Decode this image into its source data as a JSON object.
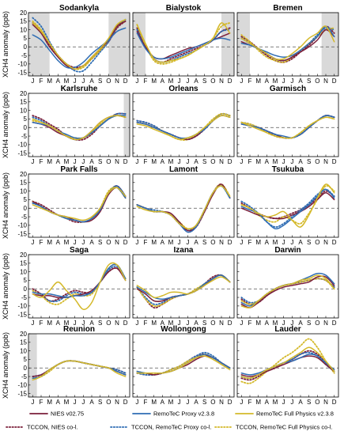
{
  "chart_data": {
    "type": "line",
    "ylabel": "XCH4 anomaly (ppb)",
    "ylim": [
      -17,
      20
    ],
    "yticks": [
      -15,
      -10,
      -5,
      0,
      5,
      10,
      15,
      20
    ],
    "months": [
      "J",
      "F",
      "M",
      "A",
      "M",
      "J",
      "J",
      "A",
      "S",
      "O",
      "N",
      "D"
    ],
    "legend_labels": {
      "nies": "NIES v02.75",
      "proxy": "RemoTeC Proxy v2.3.8",
      "full": "RemoTeC Full Physics v2.3.8",
      "tccon_nies": "TCCON, NIES co-l.",
      "tccon_proxy": "TCCON, RemoTeC Proxy co-l.",
      "tccon_full": "TCCON, RemoTeC Full Physics co-l."
    },
    "colors": {
      "nies": "#7b1f3a",
      "proxy": "#2f6db4",
      "full": "#d4b92a",
      "zero_line": "#555555",
      "shade": "#d9d9d9"
    },
    "panels": [
      {
        "title": "Sodankyla",
        "shade": [
          [
            0,
            2.5
          ],
          [
            9.5,
            12
          ]
        ],
        "nies": [
          13,
          8,
          0,
          -6,
          -11,
          -13,
          -11,
          -6,
          -1,
          4,
          12,
          15
        ],
        "proxy": [
          7,
          4,
          -2,
          -8,
          -12,
          -12,
          -9,
          -4,
          0,
          4,
          9,
          11
        ],
        "full": [
          14,
          9,
          2,
          -5,
          -10,
          -13,
          -11,
          -6,
          -1,
          5,
          13,
          16
        ],
        "tccon_nies": [
          14,
          9,
          1,
          -5,
          -10,
          -12,
          -11,
          -7,
          -2,
          3,
          11,
          15
        ],
        "tccon_proxy": [
          17,
          12,
          3,
          -5,
          -10,
          -14,
          -14,
          -9,
          -3,
          3,
          12,
          16
        ],
        "tccon_full": [
          15,
          10,
          2,
          -5,
          -10,
          -13,
          -12,
          -7,
          -2,
          4,
          12,
          15
        ]
      },
      {
        "title": "Bialystok",
        "shade": [
          [
            0,
            1.5
          ],
          [
            10.5,
            12
          ]
        ],
        "nies": [
          9,
          0,
          -6,
          -7,
          -5,
          -3,
          -1,
          0,
          2,
          4,
          6,
          8
        ],
        "proxy": [
          8,
          -1,
          -6,
          -7,
          -6,
          -4,
          -2,
          0,
          2,
          4,
          5,
          4
        ],
        "full": [
          13,
          2,
          -7,
          -9,
          -8,
          -7,
          -5,
          -2,
          1,
          5,
          14,
          8
        ],
        "tccon_nies": [
          11,
          1,
          -7,
          -9,
          -7,
          -5,
          -3,
          -1,
          1,
          4,
          9,
          11
        ],
        "tccon_proxy": [
          10,
          0,
          -7,
          -9,
          -8,
          -6,
          -4,
          -2,
          1,
          4,
          9,
          10
        ],
        "tccon_full": [
          13,
          1,
          -8,
          -10,
          -9,
          -7,
          -5,
          -2,
          1,
          5,
          12,
          14
        ]
      },
      {
        "title": "Bremen",
        "shade": [
          [
            0,
            1.5
          ],
          [
            10,
            12
          ]
        ],
        "nies": [
          3,
          1,
          -1,
          -4,
          -7,
          -8,
          -6,
          -3,
          0,
          4,
          10,
          6
        ],
        "proxy": [
          2,
          1,
          -1,
          -3,
          -5,
          -6,
          -5,
          -2,
          2,
          6,
          12,
          6
        ],
        "full": [
          5,
          2,
          -1,
          -4,
          -7,
          -7,
          -4,
          0,
          5,
          8,
          12,
          3
        ],
        "tccon_nies": [
          6,
          3,
          -1,
          -5,
          -8,
          -9,
          -7,
          -3,
          1,
          6,
          12,
          8
        ],
        "tccon_proxy": [
          5,
          2,
          -1,
          -4,
          -7,
          -8,
          -6,
          -2,
          2,
          7,
          11,
          10
        ],
        "tccon_full": [
          7,
          3,
          -2,
          -6,
          -8,
          -9,
          -6,
          -2,
          2,
          6,
          10,
          11
        ]
      },
      {
        "title": "Karlsruhe",
        "shade": [
          [
            11.3,
            12
          ]
        ],
        "nies": [
          3,
          2,
          0,
          -3,
          -5,
          -7,
          -6,
          -2,
          3,
          6,
          7,
          6
        ],
        "proxy": [
          3,
          2,
          1,
          -2,
          -4,
          -6,
          -6,
          -3,
          1,
          5,
          7,
          7
        ],
        "full": [
          5,
          3,
          1,
          -2,
          -5,
          -7,
          -6,
          -2,
          3,
          6,
          7,
          6
        ],
        "tccon_nies": [
          7,
          5,
          2,
          -1,
          -5,
          -7,
          -7,
          -4,
          1,
          5,
          8,
          8
        ],
        "tccon_proxy": [
          6,
          4,
          1,
          -2,
          -5,
          -7,
          -6,
          -3,
          1,
          5,
          8,
          8
        ],
        "tccon_full": [
          4,
          3,
          1,
          -2,
          -5,
          -6,
          -6,
          -3,
          2,
          5,
          7,
          6
        ]
      },
      {
        "title": "Orleans",
        "shade": [],
        "nies": [
          3,
          2,
          0,
          -2,
          -4,
          -6,
          -7,
          -5,
          -1,
          4,
          7,
          6
        ],
        "proxy": [
          3,
          2,
          0,
          -2,
          -4,
          -6,
          -6,
          -4,
          -1,
          4,
          7,
          6
        ],
        "full": [
          2,
          1,
          -1,
          -3,
          -5,
          -7,
          -6,
          -4,
          0,
          4,
          7,
          6
        ],
        "tccon_nies": [
          4,
          3,
          1,
          -2,
          -4,
          -6,
          -7,
          -5,
          -1,
          4,
          8,
          7
        ],
        "tccon_proxy": [
          4,
          3,
          1,
          -2,
          -4,
          -6,
          -7,
          -5,
          -1,
          4,
          8,
          7
        ],
        "tccon_full": [
          3,
          2,
          0,
          -2,
          -5,
          -7,
          -7,
          -4,
          0,
          5,
          8,
          7
        ]
      },
      {
        "title": "Garmisch",
        "shade": [],
        "nies": [
          2,
          1,
          0,
          -2,
          -4,
          -6,
          -6,
          -4,
          0,
          4,
          7,
          6
        ],
        "proxy": [
          2,
          1,
          0,
          -2,
          -4,
          -5,
          -6,
          -4,
          0,
          4,
          7,
          6
        ],
        "full": [
          3,
          1,
          -1,
          -3,
          -5,
          -6,
          -6,
          -3,
          1,
          4,
          6,
          5
        ],
        "tccon_nies": [
          3,
          2,
          0,
          -2,
          -5,
          -6,
          -6,
          -4,
          0,
          4,
          7,
          6
        ],
        "tccon_proxy": [
          3,
          2,
          0,
          -2,
          -4,
          -6,
          -6,
          -4,
          0,
          4,
          7,
          6
        ],
        "tccon_full": [
          3,
          2,
          0,
          -3,
          -5,
          -6,
          -6,
          -3,
          1,
          4,
          6,
          5
        ]
      },
      {
        "title": "Park Falls",
        "shade": [],
        "nies": [
          4,
          1,
          -2,
          -4,
          -5,
          -7,
          -8,
          -7,
          -2,
          8,
          12,
          6
        ],
        "proxy": [
          3,
          1,
          -2,
          -4,
          -6,
          -7,
          -8,
          -6,
          -1,
          9,
          12,
          6
        ],
        "full": [
          2,
          0,
          -2,
          -4,
          -5,
          -6,
          -7,
          -5,
          0,
          9,
          12,
          7
        ],
        "tccon_nies": [
          4,
          2,
          -1,
          -4,
          -6,
          -8,
          -8,
          -6,
          0,
          9,
          13,
          7
        ],
        "tccon_proxy": [
          3,
          1,
          -2,
          -4,
          -6,
          -7,
          -8,
          -6,
          -1,
          9,
          13,
          7
        ],
        "tccon_full": [
          4,
          1,
          -2,
          -4,
          -6,
          -7,
          -8,
          -6,
          0,
          10,
          12,
          6
        ]
      },
      {
        "title": "Lamont",
        "shade": [],
        "nies": [
          2,
          0,
          -2,
          -2,
          -3,
          -8,
          -13,
          -11,
          -2,
          8,
          14,
          6
        ],
        "proxy": [
          2,
          0,
          -2,
          -2,
          -4,
          -9,
          -14,
          -11,
          -1,
          9,
          13,
          6
        ],
        "full": [
          1,
          -1,
          -2,
          -2,
          -4,
          -9,
          -12,
          -10,
          -1,
          9,
          13,
          7
        ],
        "tccon_nies": [
          2,
          0,
          -2,
          -2,
          -4,
          -9,
          -13,
          -11,
          -2,
          9,
          14,
          6
        ],
        "tccon_proxy": [
          2,
          0,
          -1,
          -2,
          -4,
          -9,
          -13,
          -10,
          -1,
          9,
          13,
          6
        ],
        "tccon_full": [
          2,
          0,
          -2,
          -2,
          -4,
          -8,
          -12,
          -10,
          -1,
          9,
          14,
          7
        ]
      },
      {
        "title": "Tsukuba",
        "shade": [],
        "nies": [
          0,
          -2,
          -4,
          -5,
          -6,
          -6,
          -4,
          -2,
          1,
          5,
          9,
          5
        ],
        "proxy": [
          1,
          -1,
          -3,
          -8,
          -12,
          -10,
          -6,
          -2,
          2,
          7,
          11,
          6
        ],
        "full": [
          2,
          0,
          -3,
          -5,
          -4,
          -2,
          -7,
          -11,
          -4,
          6,
          14,
          9
        ],
        "tccon_nies": [
          3,
          0,
          -3,
          -5,
          -6,
          -5,
          -3,
          -1,
          2,
          6,
          10,
          7
        ],
        "tccon_proxy": [
          4,
          1,
          -3,
          -8,
          -11,
          -9,
          -5,
          -1,
          3,
          8,
          11,
          7
        ],
        "tccon_full": [
          2,
          0,
          -4,
          -7,
          -8,
          -5,
          -7,
          -9,
          -3,
          5,
          13,
          10
        ]
      },
      {
        "title": "Saga",
        "shade": [],
        "nies": [
          -3,
          -4,
          -4,
          -5,
          -5,
          -4,
          -3,
          -1,
          4,
          10,
          12,
          5
        ],
        "proxy": [
          -2,
          -3,
          -3,
          -4,
          -5,
          -4,
          -4,
          -2,
          4,
          12,
          14,
          6
        ],
        "full": [
          -3,
          -5,
          -1,
          4,
          -1,
          -6,
          -12,
          -8,
          4,
          14,
          14,
          5
        ],
        "tccon_nies": [
          0,
          -3,
          -7,
          -6,
          -3,
          -1,
          -2,
          -2,
          4,
          10,
          12,
          6
        ],
        "tccon_proxy": [
          -1,
          -4,
          -7,
          -7,
          -4,
          -2,
          -3,
          -2,
          4,
          11,
          13,
          6
        ],
        "tccon_full": [
          -1,
          -4,
          -8,
          -9,
          -6,
          -3,
          -4,
          -3,
          4,
          12,
          14,
          6
        ]
      },
      {
        "title": "Izana",
        "shade": [],
        "nies": [
          0,
          -3,
          -7,
          -7,
          -5,
          -4,
          -3,
          -1,
          2,
          6,
          8,
          4
        ],
        "proxy": [
          1,
          -2,
          -5,
          -6,
          -5,
          -4,
          -3,
          -1,
          3,
          6,
          8,
          4
        ],
        "full": [
          2,
          -1,
          -5,
          -4,
          -2,
          -2,
          -3,
          -1,
          2,
          5,
          7,
          4
        ],
        "tccon_nies": [
          1,
          -6,
          -11,
          -9,
          -6,
          -4,
          -3,
          -1,
          3,
          7,
          8,
          4
        ],
        "tccon_proxy": [
          1,
          -5,
          -9,
          -8,
          -5,
          -4,
          -3,
          -1,
          3,
          6,
          8,
          4
        ],
        "tccon_full": [
          1,
          -6,
          -10,
          -9,
          -6,
          -4,
          -3,
          0,
          3,
          6,
          8,
          4
        ]
      },
      {
        "title": "Darwin",
        "shade": [],
        "nies": [
          -9,
          -11,
          -8,
          -4,
          -1,
          1,
          2,
          3,
          4,
          7,
          7,
          2
        ],
        "proxy": [
          -8,
          -10,
          -7,
          -3,
          0,
          2,
          3,
          5,
          7,
          9,
          8,
          3
        ],
        "full": [
          -10,
          -11,
          -7,
          -3,
          0,
          2,
          3,
          5,
          6,
          8,
          6,
          0
        ],
        "tccon_nies": [
          -6,
          -9,
          -8,
          -4,
          0,
          2,
          3,
          4,
          5,
          6,
          5,
          1
        ],
        "tccon_proxy": [
          -5,
          -8,
          -7,
          -3,
          0,
          2,
          3,
          4,
          5,
          6,
          5,
          1
        ],
        "tccon_full": [
          -7,
          -9,
          -7,
          -3,
          0,
          2,
          3,
          4,
          5,
          6,
          5,
          0
        ]
      },
      {
        "title": "Reunion",
        "shade": [
          [
            0,
            1
          ]
        ],
        "nies": [
          -5,
          -4,
          -1,
          2,
          4,
          4,
          3,
          2,
          1,
          0,
          -2,
          -4
        ],
        "proxy": [
          -6,
          -5,
          -1,
          2,
          4,
          4,
          3,
          2,
          1,
          0,
          -2,
          -4
        ],
        "full": [
          -7,
          -5,
          -1,
          2,
          4,
          4,
          3,
          2,
          1,
          0,
          -3,
          -5
        ],
        "tccon_nies": [
          -5,
          -4,
          -1,
          2,
          4,
          4,
          3,
          2,
          1,
          0,
          -1,
          -3
        ],
        "tccon_proxy": [
          -5,
          -4,
          -1,
          2,
          4,
          4,
          3,
          2,
          1,
          0,
          -1,
          -3
        ],
        "tccon_full": [
          -6,
          -5,
          -2,
          2,
          4,
          4,
          3,
          2,
          1,
          0,
          -2,
          -4
        ]
      },
      {
        "title": "Wollongong",
        "shade": [],
        "nies": [
          -3,
          -3,
          -4,
          -3,
          -2,
          0,
          2,
          5,
          7,
          6,
          3,
          0
        ],
        "proxy": [
          -2,
          -3,
          -3,
          -3,
          -2,
          0,
          3,
          6,
          8,
          6,
          3,
          0
        ],
        "full": [
          -3,
          -3,
          -3,
          -3,
          -2,
          0,
          3,
          6,
          7,
          5,
          2,
          -1
        ],
        "tccon_nies": [
          -3,
          -4,
          -4,
          -3,
          -1,
          1,
          4,
          7,
          8,
          6,
          3,
          0
        ],
        "tccon_proxy": [
          -3,
          -4,
          -4,
          -3,
          -1,
          1,
          4,
          7,
          9,
          7,
          3,
          0
        ],
        "tccon_full": [
          -2,
          -3,
          -3,
          -3,
          -1,
          1,
          4,
          6,
          8,
          6,
          3,
          0
        ]
      },
      {
        "title": "Lauder",
        "shade": [],
        "nies": [
          -4,
          -5,
          -4,
          -2,
          0,
          2,
          4,
          6,
          7,
          6,
          2,
          -2
        ],
        "proxy": [
          -3,
          -4,
          -3,
          -1,
          1,
          3,
          4,
          6,
          8,
          7,
          3,
          -1
        ],
        "full": [
          -5,
          -6,
          -4,
          -1,
          1,
          3,
          6,
          9,
          12,
          9,
          4,
          -2
        ],
        "tccon_nies": [
          -6,
          -7,
          -5,
          -2,
          0,
          3,
          5,
          8,
          10,
          8,
          3,
          -2
        ],
        "tccon_proxy": [
          -5,
          -6,
          -4,
          -1,
          1,
          3,
          5,
          8,
          9,
          7,
          2,
          -2
        ],
        "tccon_full": [
          -8,
          -9,
          -6,
          -2,
          2,
          6,
          9,
          13,
          17,
          12,
          4,
          -3
        ]
      }
    ]
  }
}
